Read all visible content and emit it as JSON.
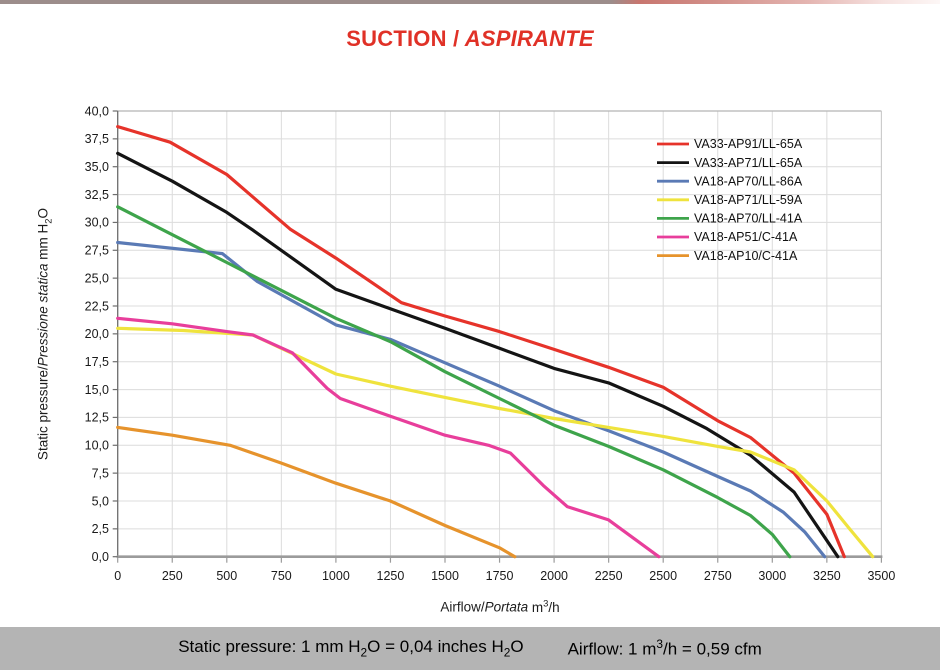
{
  "page": {
    "title_plain": "SUCTION /",
    "title_italic": " ASPIRANTE",
    "title_color": "#e03127"
  },
  "footer": {
    "conversion_pressure": "Static pressure: 1 mm H2O = 0,04 inches H2O",
    "conversion_airflow": "Airflow: 1 m3/h = 0,59 cfm",
    "bar_color": "#b4b4b4"
  },
  "chart_data": {
    "type": "line",
    "title": "SUCTION / ASPIRANTE",
    "xlabel_plain": "Airflow/",
    "xlabel_italic": "Portata",
    "xlabel_unit": " m3/h",
    "ylabel_plain": "Static pressure/",
    "ylabel_italic": "Pressione statica",
    "ylabel_unit": " mm  H2O",
    "xlim": [
      0,
      3500
    ],
    "x_tick_step": 250,
    "ylim": [
      0,
      40
    ],
    "y_tick_step": 2.5,
    "y_tick_decimal": "comma",
    "grid": true,
    "legend_position": "top-right",
    "grid_color": "#dcdcdc",
    "series": [
      {
        "name": "VA33-AP91/LL-65A",
        "color": "#e6332a",
        "points": [
          [
            0,
            38.6
          ],
          [
            240,
            37.2
          ],
          [
            500,
            34.3
          ],
          [
            790,
            29.4
          ],
          [
            1000,
            26.8
          ],
          [
            1300,
            22.8
          ],
          [
            1500,
            21.6
          ],
          [
            1750,
            20.2
          ],
          [
            2000,
            18.6
          ],
          [
            2250,
            17.0
          ],
          [
            2500,
            15.2
          ],
          [
            2750,
            12.2
          ],
          [
            2900,
            10.7
          ],
          [
            3100,
            7.5
          ],
          [
            3250,
            3.8
          ],
          [
            3330,
            0
          ]
        ]
      },
      {
        "name": "VA33-AP71/LL-65A",
        "color": "#141414",
        "points": [
          [
            0,
            36.2
          ],
          [
            250,
            33.7
          ],
          [
            500,
            30.9
          ],
          [
            620,
            29.3
          ],
          [
            1000,
            24.0
          ],
          [
            1200,
            22.6
          ],
          [
            1500,
            20.5
          ],
          [
            1750,
            18.7
          ],
          [
            2000,
            16.9
          ],
          [
            2250,
            15.6
          ],
          [
            2500,
            13.5
          ],
          [
            2700,
            11.5
          ],
          [
            2900,
            9.1
          ],
          [
            3100,
            5.8
          ],
          [
            3300,
            0
          ]
        ]
      },
      {
        "name": "VA18-AP70/LL-86A",
        "color": "#5a7ab5",
        "points": [
          [
            0,
            28.2
          ],
          [
            480,
            27.2
          ],
          [
            640,
            24.7
          ],
          [
            1000,
            20.8
          ],
          [
            1250,
            19.5
          ],
          [
            1500,
            17.4
          ],
          [
            1750,
            15.3
          ],
          [
            2000,
            13.1
          ],
          [
            2250,
            11.3
          ],
          [
            2500,
            9.4
          ],
          [
            2750,
            7.2
          ],
          [
            2900,
            5.9
          ],
          [
            3050,
            4.0
          ],
          [
            3150,
            2.2
          ],
          [
            3240,
            0
          ]
        ]
      },
      {
        "name": "VA18-AP71/LL-59A",
        "color": "#efe33d",
        "points": [
          [
            0,
            20.5
          ],
          [
            300,
            20.3
          ],
          [
            620,
            19.9
          ],
          [
            1000,
            16.4
          ],
          [
            1250,
            15.3
          ],
          [
            1500,
            14.3
          ],
          [
            1750,
            13.3
          ],
          [
            2000,
            12.4
          ],
          [
            2250,
            11.6
          ],
          [
            2500,
            10.8
          ],
          [
            2750,
            9.9
          ],
          [
            2900,
            9.4
          ],
          [
            3100,
            7.8
          ],
          [
            3250,
            5.0
          ],
          [
            3350,
            2.6
          ],
          [
            3460,
            0
          ]
        ]
      },
      {
        "name": "VA18-AP70/LL-41A",
        "color": "#3ea44b",
        "points": [
          [
            0,
            31.4
          ],
          [
            250,
            28.9
          ],
          [
            500,
            26.4
          ],
          [
            750,
            23.9
          ],
          [
            1000,
            21.4
          ],
          [
            1250,
            19.3
          ],
          [
            1500,
            16.6
          ],
          [
            1750,
            14.2
          ],
          [
            2000,
            11.8
          ],
          [
            2250,
            9.9
          ],
          [
            2500,
            7.8
          ],
          [
            2750,
            5.3
          ],
          [
            2900,
            3.7
          ],
          [
            3000,
            2.0
          ],
          [
            3080,
            0
          ]
        ]
      },
      {
        "name": "VA18-AP51/C-41A",
        "color": "#e83e9b",
        "points": [
          [
            0,
            21.4
          ],
          [
            250,
            20.9
          ],
          [
            500,
            20.2
          ],
          [
            620,
            19.9
          ],
          [
            800,
            18.3
          ],
          [
            960,
            15.1
          ],
          [
            1020,
            14.2
          ],
          [
            1250,
            12.6
          ],
          [
            1500,
            10.9
          ],
          [
            1700,
            10.0
          ],
          [
            1800,
            9.3
          ],
          [
            1950,
            6.4
          ],
          [
            2060,
            4.5
          ],
          [
            2250,
            3.3
          ],
          [
            2480,
            0
          ]
        ]
      },
      {
        "name": "VA18-AP10/C-41A",
        "color": "#e6932c",
        "points": [
          [
            0,
            11.6
          ],
          [
            250,
            10.9
          ],
          [
            515,
            10.0
          ],
          [
            750,
            8.4
          ],
          [
            1000,
            6.6
          ],
          [
            1250,
            5.0
          ],
          [
            1500,
            2.8
          ],
          [
            1750,
            0.8
          ],
          [
            1820,
            0
          ]
        ]
      }
    ]
  }
}
